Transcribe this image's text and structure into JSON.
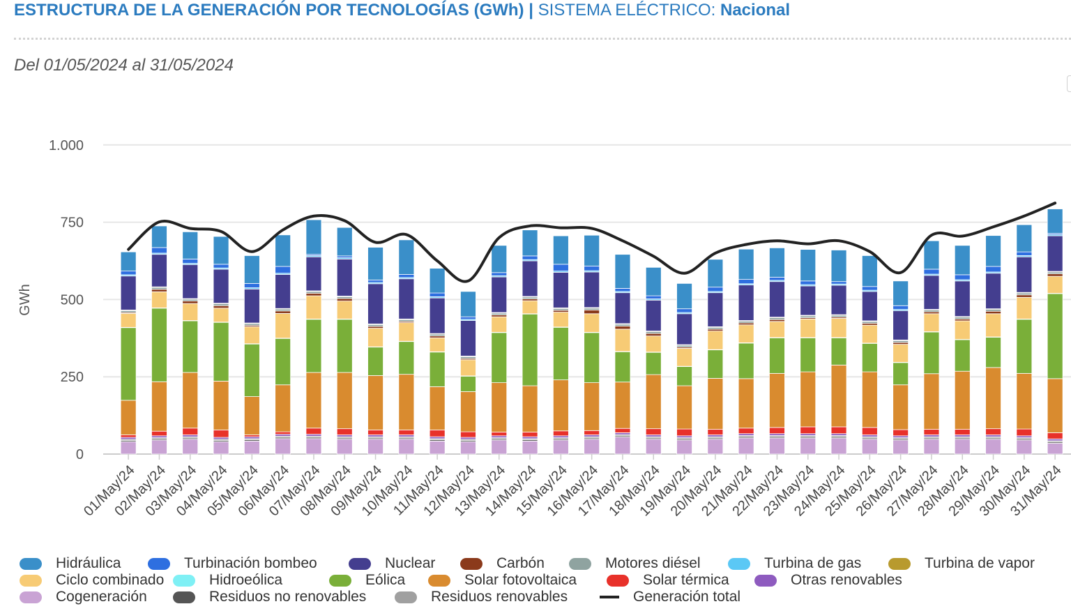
{
  "header": {
    "title": "ESTRUCTURA DE LA GENERACIÓN POR TECNOLOGÍAS (GWh)",
    "separator": "|",
    "system_label": "SISTEMA ELÉCTRICO:",
    "system_value": "Nacional",
    "date_range": "Del 01/05/2024 al 31/05/2024"
  },
  "chart_data": {
    "type": "bar",
    "stacked": true,
    "ylabel": "GWh",
    "ylim": [
      0,
      1000
    ],
    "yticks": [
      0,
      250,
      500,
      750,
      1000
    ],
    "ytick_labels": [
      "0",
      "250",
      "500",
      "750",
      "1.000"
    ],
    "grid": true,
    "legend_position": "bottom",
    "categories": [
      "01/May/24",
      "02/May/24",
      "03/May/24",
      "04/May/24",
      "05/May/24",
      "06/May/24",
      "07/May/24",
      "08/May/24",
      "09/May/24",
      "10/May/24",
      "11/May/24",
      "12/May/24",
      "13/May/24",
      "14/May/24",
      "15/May/24",
      "16/May/24",
      "17/May/24",
      "18/May/24",
      "19/May/24",
      "20/May/24",
      "21/May/24",
      "22/May/24",
      "23/May/24",
      "24/May/24",
      "25/May/24",
      "26/May/24",
      "27/May/24",
      "28/May/24",
      "29/May/24",
      "30/May/24",
      "31/May/24"
    ],
    "series": [
      {
        "name": "Cogeneración",
        "color": "#c9a3d4",
        "values": [
          40,
          45,
          48,
          40,
          42,
          50,
          50,
          48,
          48,
          48,
          42,
          40,
          45,
          42,
          45,
          48,
          55,
          48,
          45,
          48,
          52,
          52,
          52,
          52,
          48,
          45,
          48,
          48,
          48,
          45,
          35
        ]
      },
      {
        "name": "Residuos no renovables",
        "color": "#555555",
        "values": [
          4,
          4,
          4,
          4,
          4,
          4,
          4,
          4,
          4,
          4,
          4,
          4,
          4,
          4,
          4,
          4,
          4,
          4,
          4,
          4,
          4,
          4,
          4,
          4,
          4,
          4,
          4,
          4,
          4,
          4,
          4
        ]
      },
      {
        "name": "Residuos renovables",
        "color": "#a0a0a0",
        "values": [
          4,
          4,
          4,
          4,
          4,
          4,
          4,
          4,
          4,
          4,
          4,
          4,
          4,
          4,
          4,
          4,
          4,
          4,
          4,
          4,
          4,
          4,
          4,
          4,
          4,
          4,
          4,
          4,
          4,
          4,
          4
        ]
      },
      {
        "name": "Otras renovables",
        "color": "#8e5bbf",
        "values": [
          6,
          6,
          6,
          6,
          6,
          6,
          6,
          6,
          6,
          6,
          6,
          6,
          6,
          6,
          6,
          6,
          6,
          6,
          6,
          6,
          6,
          6,
          6,
          6,
          6,
          6,
          6,
          6,
          6,
          6,
          6
        ]
      },
      {
        "name": "Solar térmica",
        "color": "#e8312a",
        "values": [
          8,
          15,
          22,
          24,
          6,
          8,
          20,
          20,
          16,
          16,
          22,
          18,
          12,
          15,
          16,
          14,
          14,
          20,
          22,
          18,
          18,
          20,
          22,
          22,
          24,
          20,
          18,
          18,
          20,
          22,
          20
        ]
      },
      {
        "name": "Solar fotovoltaica",
        "color": "#d98b2f",
        "values": [
          112,
          160,
          180,
          158,
          124,
          152,
          180,
          182,
          176,
          180,
          140,
          130,
          160,
          150,
          165,
          155,
          150,
          175,
          140,
          165,
          160,
          175,
          178,
          200,
          180,
          145,
          180,
          188,
          198,
          180,
          175
        ]
      },
      {
        "name": "Eólica",
        "color": "#7aaf39",
        "values": [
          235,
          238,
          167,
          190,
          170,
          150,
          172,
          172,
          92,
          106,
          112,
          50,
          162,
          232,
          170,
          162,
          98,
          72,
          62,
          92,
          115,
          115,
          110,
          88,
          92,
          72,
          135,
          102,
          98,
          175,
          275
        ]
      },
      {
        "name": "Hidroeólica",
        "color": "#7ff0f5",
        "values": [
          1,
          1,
          1,
          1,
          1,
          1,
          1,
          1,
          1,
          1,
          1,
          1,
          1,
          1,
          1,
          1,
          1,
          1,
          1,
          1,
          1,
          1,
          1,
          1,
          1,
          1,
          1,
          1,
          1,
          1,
          1
        ]
      },
      {
        "name": "Ciclo combinado",
        "color": "#f7cb75",
        "values": [
          45,
          52,
          55,
          45,
          55,
          80,
          75,
          58,
          60,
          60,
          45,
          52,
          50,
          42,
          48,
          60,
          72,
          52,
          58,
          60,
          58,
          52,
          60,
          62,
          58,
          58,
          58,
          60,
          75,
          70,
          55
        ]
      },
      {
        "name": "Carbón",
        "color": "#8b3a1b",
        "values": [
          3,
          8,
          8,
          8,
          4,
          8,
          8,
          8,
          6,
          4,
          6,
          4,
          6,
          6,
          6,
          12,
          10,
          8,
          4,
          6,
          6,
          6,
          4,
          4,
          6,
          6,
          6,
          6,
          8,
          8,
          8
        ]
      },
      {
        "name": "Motores diésel",
        "color": "#8fa3a0",
        "values": [
          6,
          6,
          6,
          6,
          6,
          6,
          6,
          6,
          6,
          6,
          6,
          6,
          6,
          6,
          6,
          6,
          6,
          6,
          6,
          6,
          6,
          6,
          6,
          6,
          6,
          6,
          6,
          6,
          6,
          6,
          6
        ]
      },
      {
        "name": "Turbina de vapor",
        "color": "#b89a2e",
        "values": [
          2,
          2,
          2,
          2,
          2,
          2,
          2,
          2,
          2,
          2,
          2,
          2,
          2,
          2,
          2,
          2,
          2,
          2,
          2,
          2,
          2,
          2,
          2,
          2,
          2,
          2,
          2,
          2,
          2,
          2,
          2
        ]
      },
      {
        "name": "Nuclear",
        "color": "#443e8f",
        "values": [
          110,
          105,
          110,
          110,
          110,
          110,
          110,
          120,
          130,
          130,
          115,
          115,
          115,
          115,
          115,
          115,
          100,
          100,
          100,
          110,
          115,
          115,
          95,
          95,
          95,
          95,
          110,
          115,
          115,
          115,
          115
        ]
      },
      {
        "name": "Turbina de gas",
        "color": "#5bc8f5",
        "values": [
          4,
          4,
          4,
          4,
          4,
          4,
          4,
          4,
          4,
          4,
          4,
          4,
          4,
          4,
          4,
          4,
          4,
          4,
          4,
          4,
          4,
          4,
          4,
          4,
          4,
          4,
          4,
          4,
          4,
          4,
          4
        ]
      },
      {
        "name": "Turbinación bombeo",
        "color": "#2e6fe0",
        "values": [
          12,
          18,
          14,
          12,
          14,
          22,
          4,
          6,
          8,
          10,
          12,
          8,
          10,
          12,
          22,
          15,
          10,
          10,
          12,
          14,
          14,
          10,
          12,
          8,
          12,
          12,
          16,
          16,
          18,
          12,
          4
        ]
      },
      {
        "name": "Hidráulica",
        "color": "#3a8fc9",
        "values": [
          62,
          70,
          88,
          90,
          90,
          102,
          112,
          92,
          106,
          112,
          80,
          82,
          88,
          84,
          92,
          100,
          110,
          92,
          82,
          90,
          98,
          95,
          102,
          102,
          100,
          80,
          92,
          95,
          100,
          88,
          79
        ]
      }
    ],
    "line_series": {
      "name": "Generación total",
      "color": "#222222",
      "values": [
        662,
        751,
        730,
        720,
        655,
        725,
        770,
        755,
        685,
        710,
        625,
        560,
        700,
        738,
        732,
        730,
        690,
        640,
        585,
        650,
        678,
        690,
        680,
        690,
        655,
        587,
        708,
        705,
        735,
        770,
        812
      ]
    }
  }
}
